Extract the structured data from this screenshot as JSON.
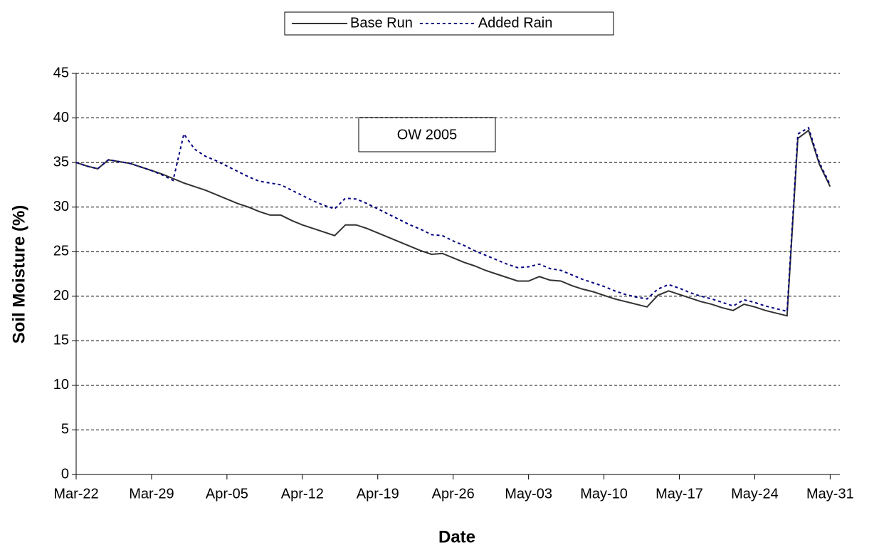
{
  "chart_data": {
    "type": "line",
    "annotation": "OW 2005",
    "x_label": "Date",
    "y_label": "Soil Moisture (%)",
    "x": [
      0,
      1,
      2,
      3,
      4,
      5,
      6,
      7,
      8,
      9,
      10,
      11,
      12,
      13,
      14,
      15,
      16,
      17,
      18,
      19,
      20,
      21,
      22,
      23,
      24,
      25,
      26,
      27,
      28,
      29,
      30,
      31,
      32,
      33,
      34,
      35,
      36,
      37,
      38,
      39,
      40,
      41,
      42,
      43,
      44,
      45,
      46,
      47,
      48,
      49,
      50,
      51,
      52,
      53,
      54,
      55,
      56,
      57,
      58,
      59,
      60,
      61,
      62,
      63,
      64,
      65,
      66,
      67,
      68,
      69,
      70
    ],
    "series": [
      {
        "name": "Base Run",
        "color": "#333333",
        "dash": false,
        "values": [
          35,
          34.6,
          34.3,
          35.3,
          35.1,
          34.9,
          34.5,
          34.1,
          33.7,
          33.2,
          32.7,
          32.3,
          31.9,
          31.4,
          30.9,
          30.4,
          30.0,
          29.5,
          29.1,
          29.1,
          28.5,
          28.0,
          27.6,
          27.2,
          26.8,
          28.0,
          28.0,
          27.6,
          27.1,
          26.6,
          26.1,
          25.6,
          25.1,
          24.7,
          24.8,
          24.3,
          23.8,
          23.4,
          22.9,
          22.5,
          22.1,
          21.7,
          21.7,
          22.2,
          21.8,
          21.7,
          21.2,
          20.8,
          20.5,
          20.1,
          19.7,
          19.4,
          19.1,
          18.8,
          20.1,
          20.6,
          20.2,
          19.8,
          19.4,
          19.1,
          18.7,
          18.4,
          19.1,
          18.8,
          18.4,
          18.1,
          17.8,
          37.7,
          38.6,
          34.8,
          32.3
        ]
      },
      {
        "name": "Added Rain",
        "color": "#000080",
        "dash": true,
        "values": [
          35,
          34.6,
          34.3,
          35.3,
          35.1,
          34.9,
          34.5,
          34.1,
          33.6,
          33.0,
          38.2,
          36.5,
          35.7,
          35.2,
          34.6,
          34.0,
          33.4,
          32.9,
          32.7,
          32.5,
          31.9,
          31.3,
          30.7,
          30.2,
          29.8,
          31.0,
          30.9,
          30.4,
          29.8,
          29.2,
          28.6,
          28.0,
          27.5,
          26.9,
          26.8,
          26.2,
          25.7,
          25.1,
          24.6,
          24.1,
          23.6,
          23.2,
          23.3,
          23.6,
          23.1,
          22.9,
          22.4,
          21.9,
          21.5,
          21.1,
          20.6,
          20.2,
          19.9,
          19.7,
          20.8,
          21.3,
          20.9,
          20.4,
          20.0,
          19.7,
          19.3,
          18.9,
          19.6,
          19.3,
          18.9,
          18.6,
          18.3,
          38.2,
          38.9,
          35.0,
          32.5
        ]
      }
    ],
    "xlim": [
      0,
      70.9
    ],
    "xticks": [
      {
        "value": 0,
        "label": "Mar-22"
      },
      {
        "value": 7,
        "label": "Mar-29"
      },
      {
        "value": 14,
        "label": "Apr-05"
      },
      {
        "value": 21,
        "label": "Apr-12"
      },
      {
        "value": 28,
        "label": "Apr-19"
      },
      {
        "value": 35,
        "label": "Apr-26"
      },
      {
        "value": 42,
        "label": "May-03"
      },
      {
        "value": 49,
        "label": "May-10"
      },
      {
        "value": 56,
        "label": "May-17"
      },
      {
        "value": 63,
        "label": "May-24"
      },
      {
        "value": 70,
        "label": "May-31"
      }
    ],
    "ylim": [
      0,
      45
    ],
    "yticks": [
      0,
      5,
      10,
      15,
      20,
      25,
      30,
      35,
      40,
      45
    ],
    "grid": true,
    "legend": "top"
  }
}
